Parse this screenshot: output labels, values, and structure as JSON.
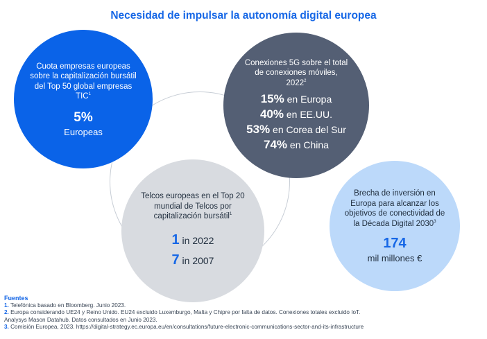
{
  "title": "Necesidad de impulsar la autonomía digital europea",
  "circles": {
    "c1": {
      "desc": "Cuota empresas europeas sobre la capitalización bursátil del Top 50 global empresas TIC",
      "sup": "1",
      "value": "5%",
      "unit": "Europeas"
    },
    "c2": {
      "desc": "Conexiones 5G sobre el total de conexiones móviles, 2022",
      "sup": "2",
      "stats": [
        {
          "value": "15%",
          "label": "en Europa"
        },
        {
          "value": "40%",
          "label": "en EE.UU."
        },
        {
          "value": "53%",
          "label": "en Corea del Sur"
        },
        {
          "value": "74%",
          "label": "en China"
        }
      ]
    },
    "c3": {
      "desc": "Telcos europeas en el Top 20 mundial de Telcos por capitalización bursátil",
      "sup": "1",
      "stats": [
        {
          "value": "1",
          "label": "in 2022"
        },
        {
          "value": "7",
          "label": "in 2007"
        }
      ]
    },
    "c4": {
      "desc": "Brecha de inversión en Europa para alcanzar los objetivos de conectividad de la Década Digital 2030",
      "sup": "3",
      "value": "174",
      "unit": "mil millones €"
    }
  },
  "sources": {
    "heading": "Fuentes",
    "items": [
      {
        "n": "1.",
        "text": "Telefónica basado en Bloomberg. Junio 2023."
      },
      {
        "n": "2.",
        "text": "Europa considerando UE24 y Reino Unido. EU24 excluido Luxemburgo, Malta y Chipre por falta de datos. Conexiones totales excluido IoT."
      },
      {
        "n": "",
        "text": "Analysys Mason Datahub. Datos consultados en Junio 2023."
      },
      {
        "n": "3.",
        "text": "Comisión Europea, 2023. https://digital-strategy.ec.europa.eu/en/consultations/future-electronic-communications-sector-and-its-infrastructure"
      }
    ]
  }
}
